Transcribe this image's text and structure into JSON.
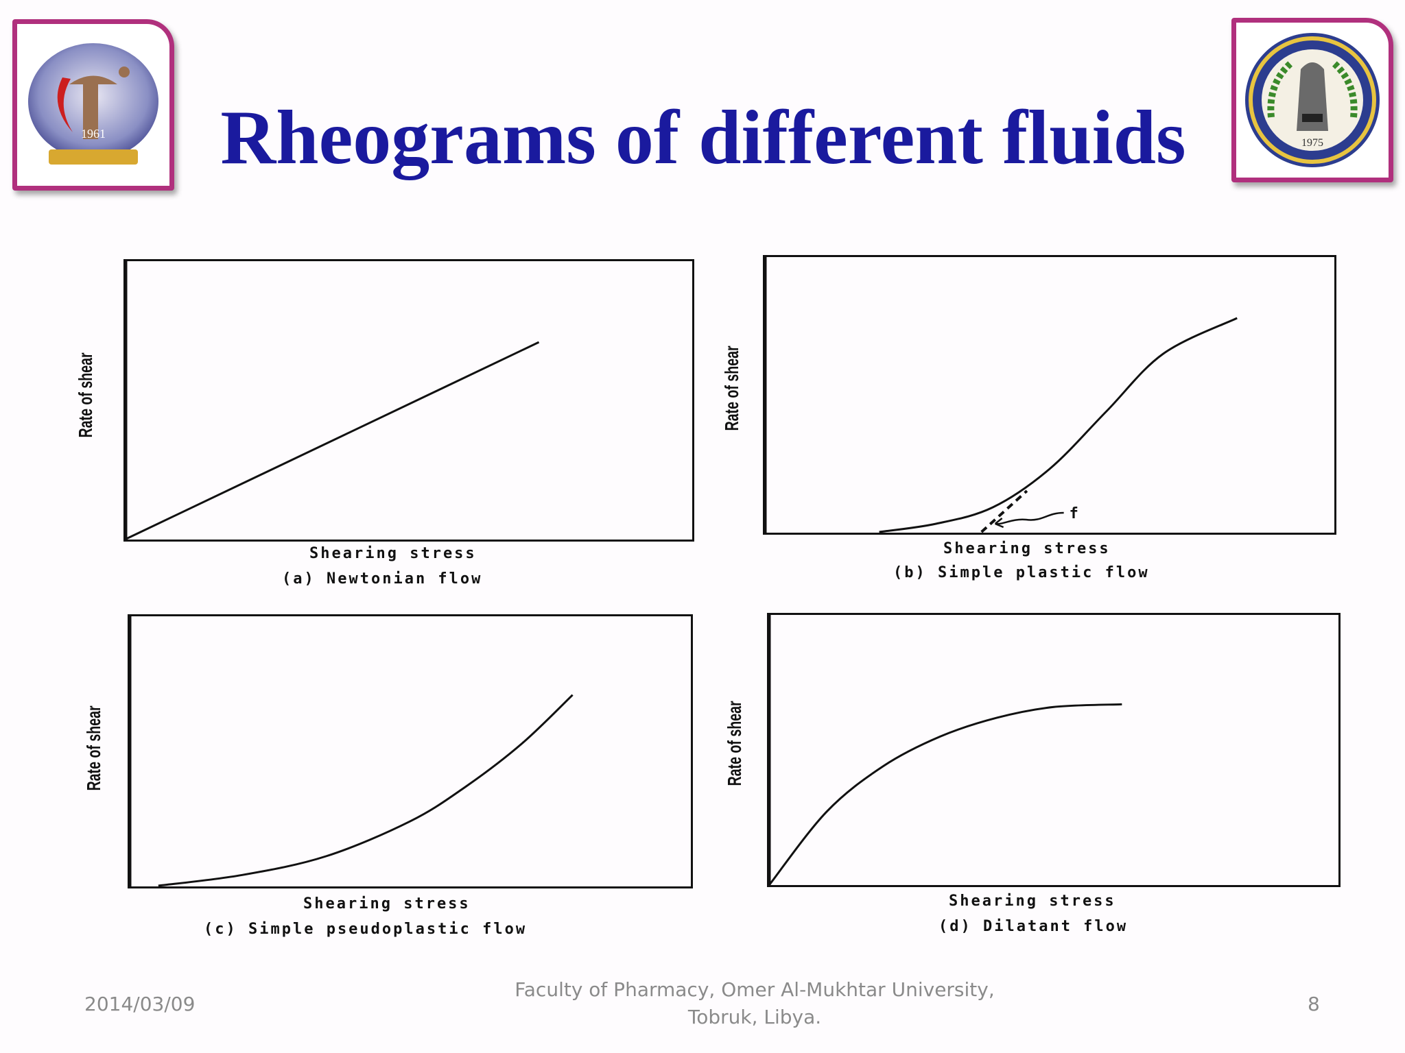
{
  "slide": {
    "title": "Rheograms of different fluids",
    "footer": {
      "date": "2014/03/09",
      "institution_line1": "Faculty of Pharmacy, Omer Al-Mukhtar University,",
      "institution_line2": "Tobruk, Libya.",
      "page_number": "8"
    },
    "logos": {
      "left_year": "1961",
      "right_year": "1975"
    }
  },
  "chart_data": [
    {
      "type": "line",
      "panel": "(a)",
      "title": "(a)  Newtonian flow",
      "xlabel": "Shearing stress",
      "ylabel": "Rate of shear",
      "xlim": [
        0,
        1
      ],
      "ylim": [
        0,
        1
      ],
      "series": [
        {
          "x": [
            0,
            0.73
          ],
          "y": [
            0,
            0.71
          ]
        }
      ]
    },
    {
      "type": "line",
      "panel": "(b)",
      "title": "(b)  Simple plastic flow",
      "xlabel": "Shearing stress",
      "ylabel": "Rate of shear",
      "annotation": "f",
      "xlim": [
        0,
        1
      ],
      "ylim": [
        0,
        1
      ],
      "series": [
        {
          "x": [
            0.2,
            0.3,
            0.4,
            0.5,
            0.6,
            0.7,
            0.83
          ],
          "y": [
            0,
            0.03,
            0.09,
            0.23,
            0.44,
            0.65,
            0.78
          ]
        },
        {
          "style": "dashed",
          "x": [
            0.38,
            0.46
          ],
          "y": [
            0,
            0.15
          ]
        }
      ]
    },
    {
      "type": "line",
      "panel": "(c)",
      "title": "(c)  Simple pseudoplastic flow",
      "xlabel": "Shearing stress",
      "ylabel": "Rate of shear",
      "xlim": [
        0,
        1
      ],
      "ylim": [
        0,
        1
      ],
      "series": [
        {
          "x": [
            0.05,
            0.2,
            0.35,
            0.5,
            0.6,
            0.7,
            0.79
          ],
          "y": [
            0,
            0.04,
            0.11,
            0.24,
            0.37,
            0.53,
            0.71
          ]
        }
      ]
    },
    {
      "type": "line",
      "panel": "(d)",
      "title": "(d)  Dilatant flow",
      "xlabel": "Shearing stress",
      "ylabel": "Rate of shear",
      "xlim": [
        0,
        1
      ],
      "ylim": [
        0,
        1
      ],
      "series": [
        {
          "x": [
            0,
            0.1,
            0.2,
            0.3,
            0.4,
            0.5,
            0.62
          ],
          "y": [
            0,
            0.27,
            0.44,
            0.55,
            0.62,
            0.66,
            0.67
          ]
        }
      ]
    }
  ],
  "colors": {
    "title": "#1a1a9e",
    "logo_frame": "#b0307d",
    "footer": "#8a8a8a",
    "ink": "#111111"
  }
}
